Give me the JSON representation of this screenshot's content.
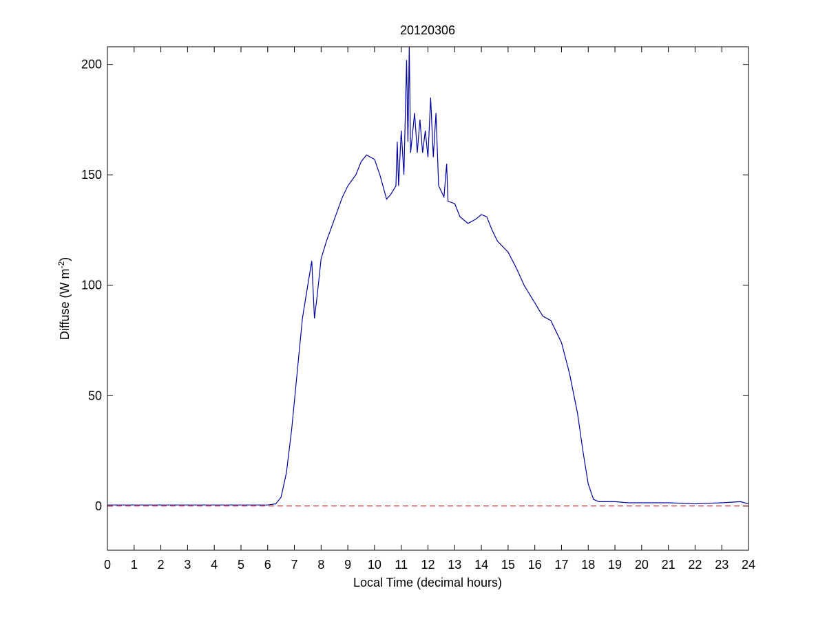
{
  "chart_data": {
    "type": "line",
    "title": "20120306",
    "x_label": "Local Time (decimal hours)",
    "y_label": [
      "Diffuse (W m",
      "-2",
      ")"
    ],
    "x": [
      0,
      1,
      2,
      3,
      4,
      5,
      6,
      6.3,
      6.5,
      6.7,
      6.9,
      7.1,
      7.3,
      7.5,
      7.65,
      7.75,
      7.85,
      8.0,
      8.2,
      8.5,
      8.8,
      9.0,
      9.3,
      9.5,
      9.7,
      10.0,
      10.2,
      10.45,
      10.6,
      10.8,
      10.85,
      10.9,
      11.0,
      11.1,
      11.2,
      11.25,
      11.3,
      11.35,
      11.5,
      11.6,
      11.7,
      11.8,
      11.9,
      12.0,
      12.1,
      12.2,
      12.3,
      12.4,
      12.6,
      12.7,
      12.75,
      13.0,
      13.2,
      13.5,
      13.8,
      14.0,
      14.2,
      14.4,
      14.6,
      15.0,
      15.3,
      15.6,
      16.0,
      16.3,
      16.6,
      17.0,
      17.3,
      17.6,
      17.8,
      18.0,
      18.2,
      18.4,
      19,
      19.5,
      20,
      21,
      22,
      23,
      23.7,
      24
    ],
    "series": [
      {
        "color": "#0000a0",
        "values": [
          0.5,
          0.5,
          0.5,
          0.5,
          0.5,
          0.5,
          0.5,
          1,
          4,
          15,
          35,
          60,
          85,
          100,
          111,
          85,
          95,
          112,
          120,
          130,
          140,
          145,
          150,
          156,
          159,
          157,
          150,
          139,
          141,
          145,
          165,
          145,
          170,
          150,
          202,
          165,
          208,
          160,
          178,
          160,
          175,
          160,
          170,
          158,
          185,
          158,
          178,
          145,
          140,
          155,
          138,
          137,
          131,
          128,
          130,
          132,
          131,
          125,
          120,
          115,
          108,
          100,
          92,
          86,
          84,
          74,
          60,
          42,
          25,
          10,
          3,
          2,
          2,
          1.5,
          1.5,
          1.5,
          1,
          1.5,
          2,
          1
        ]
      }
    ],
    "reference_line": {
      "value": 0,
      "color": "#c00000",
      "style": "dashed"
    },
    "xlim": [
      0,
      24
    ],
    "xticks": [
      0,
      1,
      2,
      3,
      4,
      5,
      6,
      7,
      8,
      9,
      10,
      11,
      12,
      13,
      14,
      15,
      16,
      17,
      18,
      19,
      20,
      21,
      22,
      23,
      24
    ],
    "ylim": [
      -20,
      208
    ],
    "yticks": [
      0,
      50,
      100,
      150,
      200
    ],
    "grid": false
  }
}
